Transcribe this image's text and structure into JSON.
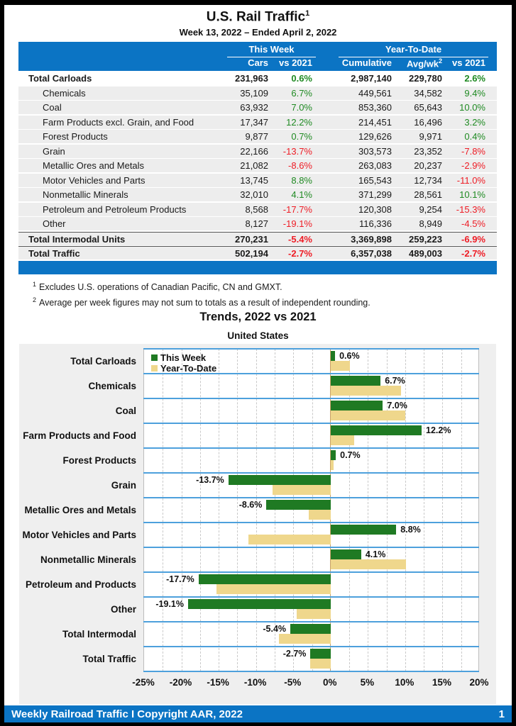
{
  "header": {
    "title": "U.S. Rail Traffic",
    "title_sup": "1",
    "subtitle": "Week 13, 2022 – Ended April 2, 2022"
  },
  "table": {
    "group_headers": {
      "this_week": "This Week",
      "year_to_date": "Year-To-Date"
    },
    "col_headers": {
      "cars": "Cars",
      "vs2021": "vs 2021",
      "cumulative": "Cumulative",
      "avgwk": "Avg/wk",
      "avgwk_sup": "2",
      "ytd_vs2021": "vs 2021"
    },
    "rows": [
      {
        "label": "Total Carloads",
        "total": true,
        "first": true,
        "cars": "231,963",
        "vs": "0.6%",
        "cum": "2,987,140",
        "avg": "229,780",
        "yvs": "2.6%"
      },
      {
        "label": "Chemicals",
        "cars": "35,109",
        "vs": "6.7%",
        "cum": "449,561",
        "avg": "34,582",
        "yvs": "9.4%"
      },
      {
        "label": "Coal",
        "cars": "63,932",
        "vs": "7.0%",
        "cum": "853,360",
        "avg": "65,643",
        "yvs": "10.0%"
      },
      {
        "label": "Farm Products excl. Grain, and Food",
        "cars": "17,347",
        "vs": "12.2%",
        "cum": "214,451",
        "avg": "16,496",
        "yvs": "3.2%"
      },
      {
        "label": "Forest Products",
        "cars": "9,877",
        "vs": "0.7%",
        "cum": "129,626",
        "avg": "9,971",
        "yvs": "0.4%"
      },
      {
        "label": "Grain",
        "cars": "22,166",
        "vs": "-13.7%",
        "cum": "303,573",
        "avg": "23,352",
        "yvs": "-7.8%"
      },
      {
        "label": "Metallic Ores and Metals",
        "cars": "21,082",
        "vs": "-8.6%",
        "cum": "263,083",
        "avg": "20,237",
        "yvs": "-2.9%"
      },
      {
        "label": "Motor Vehicles and Parts",
        "cars": "13,745",
        "vs": "8.8%",
        "cum": "165,543",
        "avg": "12,734",
        "yvs": "-11.0%"
      },
      {
        "label": "Nonmetallic Minerals",
        "cars": "32,010",
        "vs": "4.1%",
        "cum": "371,299",
        "avg": "28,561",
        "yvs": "10.1%"
      },
      {
        "label": "Petroleum and Petroleum Products",
        "cars": "8,568",
        "vs": "-17.7%",
        "cum": "120,308",
        "avg": "9,254",
        "yvs": "-15.3%"
      },
      {
        "label": "Other",
        "cars": "8,127",
        "vs": "-19.1%",
        "cum": "116,336",
        "avg": "8,949",
        "yvs": "-4.5%"
      },
      {
        "label": "Total Intermodal Units",
        "total": true,
        "topline": true,
        "cars": "270,231",
        "vs": "-5.4%",
        "cum": "3,369,898",
        "avg": "259,223",
        "yvs": "-6.9%"
      },
      {
        "label": "Total Traffic",
        "total": true,
        "topline": true,
        "cars": "502,194",
        "vs": "-2.7%",
        "cum": "6,357,038",
        "avg": "489,003",
        "yvs": "-2.7%"
      }
    ]
  },
  "footnotes": [
    {
      "sup": "1",
      "text": "Excludes U.S. operations of Canadian Pacific, CN and GMXT."
    },
    {
      "sup": "2",
      "text": "Average per week figures may not sum to totals as a result of independent rounding."
    }
  ],
  "chart_data": {
    "type": "bar",
    "orientation": "horizontal",
    "title": "Trends, 2022 vs 2021",
    "subtitle": "United States",
    "categories": [
      "Total Carloads",
      "Chemicals",
      "Coal",
      "Farm Products and Food",
      "Forest Products",
      "Grain",
      "Metallic Ores and Metals",
      "Motor Vehicles and Parts",
      "Nonmetallic Minerals",
      "Petroleum and Products",
      "Other",
      "Total Intermodal",
      "Total Traffic"
    ],
    "series": [
      {
        "name": "This Week",
        "color": "#1F7A23",
        "values": [
          0.6,
          6.7,
          7.0,
          12.2,
          0.7,
          -13.7,
          -8.6,
          8.8,
          4.1,
          -17.7,
          -19.1,
          -5.4,
          -2.7
        ]
      },
      {
        "name": "Year-To-Date",
        "color": "#EFD78C",
        "values": [
          2.6,
          9.4,
          10.0,
          3.2,
          0.4,
          -7.8,
          -2.9,
          -11.0,
          10.1,
          -15.3,
          -4.5,
          -6.9,
          -2.7
        ]
      }
    ],
    "bar_labels": [
      "0.6%",
      "6.7%",
      "7.0%",
      "12.2%",
      "0.7%",
      "-13.7%",
      "-8.6%",
      "8.8%",
      "4.1%",
      "-17.7%",
      "-19.1%",
      "-5.4%",
      "-2.7%"
    ],
    "xlim": [
      -25,
      20
    ],
    "xtick_step": 5,
    "xticks": [
      "-25%",
      "-20%",
      "-15%",
      "-10%",
      "-5%",
      "0%",
      "5%",
      "10%",
      "15%",
      "20%"
    ],
    "minor_grid_step": 2.5,
    "grid": true,
    "legend_position": "top-left-inside"
  },
  "colors": {
    "accent_blue": "#0B74C4",
    "band_line_blue": "#4DA0DC",
    "positive_green": "#1F8A22",
    "negative_red": "#EE1C25",
    "bar_green": "#1F7A23",
    "bar_tan": "#EFD78C"
  },
  "footer": {
    "left": "Weekly Railroad Traffic I Copyright AAR, 2022",
    "page": "1"
  }
}
